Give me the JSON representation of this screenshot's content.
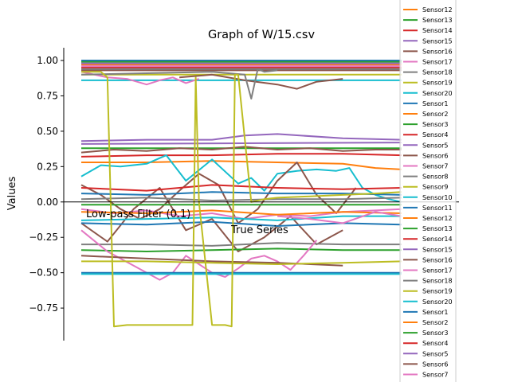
{
  "chart_data": {
    "type": "line",
    "title": "Graph of W/15.csv",
    "ylabel": "Values",
    "xlabel": "",
    "ylim": [
      -0.98,
      1.09
    ],
    "xlim": [
      0,
      49
    ],
    "y_ticks": [
      -0.75,
      -0.5,
      -0.25,
      0.0,
      0.25,
      0.5,
      0.75,
      1.0
    ],
    "y_tick_labels": [
      "−0.75",
      "−0.50",
      "−0.25",
      "0.00",
      "0.25",
      "0.50",
      "0.75",
      "1.00"
    ],
    "annotation": "True Series",
    "annotation_left": "Low-pass Filter (0.1)",
    "grid": false,
    "legend_position": "right",
    "legend_entries": [
      {
        "name": "Sensor12",
        "color": "#ff7f0e"
      },
      {
        "name": "Sensor13",
        "color": "#2ca02c"
      },
      {
        "name": "Sensor14",
        "color": "#d62728"
      },
      {
        "name": "Sensor15",
        "color": "#9467bd"
      },
      {
        "name": "Sensor16",
        "color": "#8c564b"
      },
      {
        "name": "Sensor17",
        "color": "#e377c2"
      },
      {
        "name": "Sensor18",
        "color": "#7f7f7f"
      },
      {
        "name": "Sensor19",
        "color": "#bcbd22"
      },
      {
        "name": "Sensor20",
        "color": "#17becf"
      },
      {
        "name": "Sensor1",
        "color": "#1f77b4"
      },
      {
        "name": "Sensor2",
        "color": "#ff7f0e"
      },
      {
        "name": "Sensor3",
        "color": "#2ca02c"
      },
      {
        "name": "Sensor4",
        "color": "#d62728"
      },
      {
        "name": "Sensor5",
        "color": "#9467bd"
      },
      {
        "name": "Sensor6",
        "color": "#8c564b"
      },
      {
        "name": "Sensor7",
        "color": "#e377c2"
      },
      {
        "name": "Sensor8",
        "color": "#7f7f7f"
      },
      {
        "name": "Sensor9",
        "color": "#bcbd22"
      },
      {
        "name": "Sensor10",
        "color": "#17becf"
      },
      {
        "name": "Sensor11",
        "color": "#1f77b4"
      },
      {
        "name": "Sensor12",
        "color": "#ff7f0e"
      },
      {
        "name": "Sensor13",
        "color": "#2ca02c"
      },
      {
        "name": "Sensor14",
        "color": "#d62728"
      },
      {
        "name": "Sensor15",
        "color": "#9467bd"
      },
      {
        "name": "Sensor16",
        "color": "#8c564b"
      },
      {
        "name": "Sensor17",
        "color": "#e377c2"
      },
      {
        "name": "Sensor18",
        "color": "#7f7f7f"
      },
      {
        "name": "Sensor19",
        "color": "#bcbd22"
      },
      {
        "name": "Sensor20",
        "color": "#17becf"
      },
      {
        "name": "Sensor1",
        "color": "#1f77b4"
      },
      {
        "name": "Sensor2",
        "color": "#ff7f0e"
      },
      {
        "name": "Sensor3",
        "color": "#2ca02c"
      },
      {
        "name": "Sensor4",
        "color": "#d62728"
      },
      {
        "name": "Sensor5",
        "color": "#9467bd"
      },
      {
        "name": "Sensor6",
        "color": "#8c564b"
      },
      {
        "name": "Sensor7",
        "color": "#e377c2"
      },
      {
        "name": "Sensor8",
        "color": "#7f7f7f"
      }
    ],
    "series": [
      {
        "color": "#1f77b4",
        "x": [
          0,
          49
        ],
        "y": [
          1.0,
          1.0
        ]
      },
      {
        "color": "#ff7f0e",
        "x": [
          0,
          49
        ],
        "y": [
          0.97,
          0.97
        ]
      },
      {
        "color": "#2ca02c",
        "x": [
          0,
          49
        ],
        "y": [
          0.99,
          0.99
        ]
      },
      {
        "color": "#d62728",
        "x": [
          0,
          49
        ],
        "y": [
          0.95,
          0.95
        ]
      },
      {
        "color": "#9467bd",
        "x": [
          0,
          49
        ],
        "y": [
          0.98,
          0.98
        ]
      },
      {
        "color": "#8c564b",
        "x": [
          0,
          49
        ],
        "y": [
          0.93,
          0.93
        ]
      },
      {
        "color": "#e377c2",
        "x": [
          0,
          49
        ],
        "y": [
          0.96,
          0.96
        ]
      },
      {
        "color": "#7f7f7f",
        "x": [
          0,
          49
        ],
        "y": [
          0.94,
          0.94
        ]
      },
      {
        "color": "#bcbd22",
        "x": [
          0,
          49
        ],
        "y": [
          0.9,
          0.9
        ]
      },
      {
        "color": "#17becf",
        "x": [
          0,
          49
        ],
        "y": [
          0.86,
          0.86
        ]
      },
      {
        "color": "#e377c2",
        "x": [
          0,
          4,
          7,
          10,
          12,
          14,
          16,
          18
        ],
        "y": [
          0.92,
          0.88,
          0.87,
          0.83,
          0.86,
          0.88,
          0.84,
          0.87
        ]
      },
      {
        "color": "#8c564b",
        "x": [
          15,
          20,
          25,
          30,
          33,
          36,
          40
        ],
        "y": [
          0.88,
          0.9,
          0.86,
          0.83,
          0.8,
          0.85,
          0.87
        ]
      },
      {
        "color": "#7f7f7f",
        "x": [
          0,
          10,
          20,
          25,
          26,
          27,
          28,
          30
        ],
        "y": [
          0.9,
          0.91,
          0.92,
          0.9,
          0.73,
          0.94,
          0.92,
          0.93
        ]
      },
      {
        "color": "#9467bd",
        "x": [
          0,
          10,
          20,
          25,
          30,
          40,
          49
        ],
        "y": [
          0.43,
          0.44,
          0.44,
          0.47,
          0.48,
          0.45,
          0.44
        ]
      },
      {
        "color": "#9467bd",
        "x": [
          0,
          49
        ],
        "y": [
          0.41,
          0.42
        ]
      },
      {
        "color": "#2ca02c",
        "x": [
          0,
          49
        ],
        "y": [
          0.38,
          0.38
        ]
      },
      {
        "color": "#8c564b",
        "x": [
          0,
          5,
          10,
          15,
          20,
          25,
          30,
          35,
          40,
          45,
          49
        ],
        "y": [
          0.35,
          0.37,
          0.36,
          0.38,
          0.37,
          0.39,
          0.37,
          0.38,
          0.36,
          0.37,
          0.37
        ]
      },
      {
        "color": "#d62728",
        "x": [
          0,
          10,
          20,
          30,
          40,
          49
        ],
        "y": [
          0.32,
          0.33,
          0.33,
          0.34,
          0.34,
          0.33
        ]
      },
      {
        "color": "#ff7f0e",
        "x": [
          0,
          10,
          20,
          30,
          40,
          45,
          49
        ],
        "y": [
          0.28,
          0.28,
          0.29,
          0.28,
          0.27,
          0.24,
          0.23
        ]
      },
      {
        "color": "#17becf",
        "x": [
          0,
          3,
          6,
          10,
          13,
          16,
          20,
          24,
          26,
          28,
          30,
          33,
          36,
          39,
          41,
          43,
          45,
          47,
          49
        ],
        "y": [
          0.18,
          0.26,
          0.25,
          0.27,
          0.33,
          0.15,
          0.3,
          0.13,
          0.17,
          0.08,
          0.2,
          0.22,
          0.23,
          0.22,
          0.24,
          0.1,
          0.05,
          0.02,
          0.0
        ]
      },
      {
        "color": "#8c564b",
        "x": [
          0,
          3,
          6,
          9,
          12,
          15,
          18,
          21,
          24,
          27,
          30,
          33,
          36,
          39,
          42
        ],
        "y": [
          0.12,
          0.05,
          -0.05,
          -0.12,
          -0.05,
          0.08,
          0.2,
          0.12,
          -0.15,
          -0.05,
          0.15,
          0.28,
          0.05,
          -0.08,
          0.1
        ]
      },
      {
        "color": "#8c564b",
        "x": [
          0,
          4,
          8,
          12,
          16,
          20,
          24,
          28,
          32,
          36,
          40
        ],
        "y": [
          -0.15,
          -0.28,
          -0.05,
          0.1,
          -0.2,
          -0.12,
          -0.35,
          -0.25,
          -0.1,
          -0.3,
          -0.2
        ]
      },
      {
        "color": "#d62728",
        "x": [
          0,
          10,
          20,
          30,
          40,
          49
        ],
        "y": [
          0.1,
          0.08,
          0.12,
          0.1,
          0.09,
          0.1
        ]
      },
      {
        "color": "#1f77b4",
        "x": [
          0,
          10,
          20,
          30,
          40,
          49
        ],
        "y": [
          0.06,
          0.05,
          0.07,
          0.06,
          0.06,
          0.05
        ]
      },
      {
        "color": "#7f7f7f",
        "x": [
          0,
          10,
          20,
          30,
          40,
          49
        ],
        "y": [
          0.02,
          0.03,
          0.01,
          0.02,
          0.02,
          0.03
        ]
      },
      {
        "color": "#2ca02c",
        "x": [
          0,
          49
        ],
        "y": [
          -0.02,
          -0.02
        ]
      },
      {
        "color": "#e377c2",
        "x": [
          0,
          5,
          10,
          15,
          20,
          25,
          30,
          35,
          40,
          45,
          49
        ],
        "y": [
          -0.05,
          -0.08,
          -0.06,
          -0.1,
          -0.08,
          -0.12,
          -0.09,
          -0.1,
          -0.07,
          -0.06,
          -0.05
        ]
      },
      {
        "color": "#ff7f0e",
        "x": [
          0,
          10,
          20,
          30,
          40,
          49
        ],
        "y": [
          -0.07,
          -0.08,
          -0.06,
          -0.09,
          -0.07,
          -0.08
        ]
      },
      {
        "color": "#1f77b4",
        "x": [
          0,
          10,
          20,
          30,
          40,
          49
        ],
        "y": [
          -0.15,
          -0.16,
          -0.14,
          -0.17,
          -0.15,
          -0.16
        ]
      },
      {
        "color": "#17becf",
        "x": [
          0,
          10,
          20,
          30,
          40,
          49
        ],
        "y": [
          -0.13,
          -0.12,
          -0.11,
          -0.13,
          -0.1,
          -0.1
        ]
      },
      {
        "color": "#e377c2",
        "x": [
          30,
          35,
          40,
          45,
          49
        ],
        "y": [
          -0.1,
          -0.12,
          -0.15,
          -0.07,
          -0.1
        ]
      },
      {
        "color": "#7f7f7f",
        "x": [
          0,
          10,
          20,
          30,
          40,
          49
        ],
        "y": [
          -0.3,
          -0.3,
          -0.31,
          -0.29,
          -0.3,
          -0.3
        ]
      },
      {
        "color": "#2ca02c",
        "x": [
          0,
          10,
          20,
          30,
          40,
          49
        ],
        "y": [
          -0.34,
          -0.35,
          -0.34,
          -0.33,
          -0.34,
          -0.34
        ]
      },
      {
        "color": "#e377c2",
        "x": [
          0,
          4,
          8,
          12,
          14,
          16,
          18,
          20,
          22,
          24,
          26,
          28,
          30,
          32,
          34,
          36
        ],
        "y": [
          -0.2,
          -0.35,
          -0.45,
          -0.55,
          -0.5,
          -0.38,
          -0.44,
          -0.5,
          -0.53,
          -0.47,
          -0.4,
          -0.38,
          -0.42,
          -0.48,
          -0.38,
          -0.27
        ]
      },
      {
        "color": "#8c564b",
        "x": [
          0,
          10,
          20,
          30,
          40
        ],
        "y": [
          -0.38,
          -0.4,
          -0.42,
          -0.43,
          -0.45
        ]
      },
      {
        "color": "#bcbd22",
        "x": [
          0,
          10,
          20,
          30,
          40,
          49
        ],
        "y": [
          -0.42,
          -0.42,
          -0.43,
          -0.44,
          -0.43,
          -0.42
        ]
      },
      {
        "color": "#1f77b4",
        "x": [
          0,
          49
        ],
        "y": [
          -0.5,
          -0.5
        ]
      },
      {
        "color": "#17becf",
        "x": [
          0,
          49
        ],
        "y": [
          -0.51,
          -0.51
        ]
      },
      {
        "color": "#bcbd22",
        "x": [
          0,
          3,
          4,
          5,
          7,
          9,
          11,
          14,
          17,
          17.5,
          18,
          20,
          22,
          23,
          23.5,
          24,
          26,
          28,
          30,
          35,
          40,
          45,
          49
        ],
        "y": [
          0.92,
          0.92,
          0.88,
          -0.88,
          -0.87,
          -0.87,
          -0.87,
          -0.87,
          -0.87,
          0.88,
          0.0,
          -0.87,
          -0.87,
          -0.88,
          0.9,
          0.9,
          0.0,
          0.02,
          0.03,
          0.04,
          0.05,
          0.06,
          0.07
        ]
      }
    ]
  }
}
